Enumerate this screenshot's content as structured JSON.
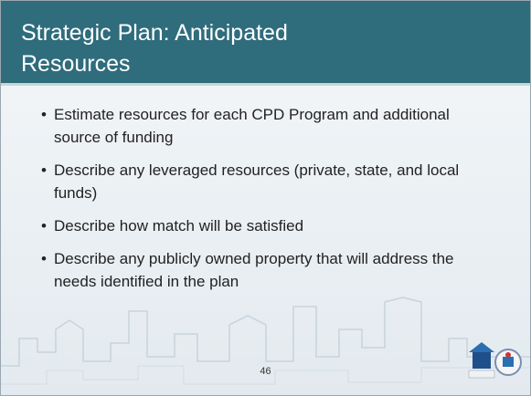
{
  "header": {
    "title": "Strategic Plan: Anticipated Resources"
  },
  "bullets": [
    "Estimate resources for each CPD Program and additional source of funding",
    "Describe any leveraged resources (private, state, and local funds)",
    "Describe how match will be satisfied",
    "Describe any publicly owned property that will address the needs identified in the plan"
  ],
  "footer": {
    "page_number": "46"
  }
}
